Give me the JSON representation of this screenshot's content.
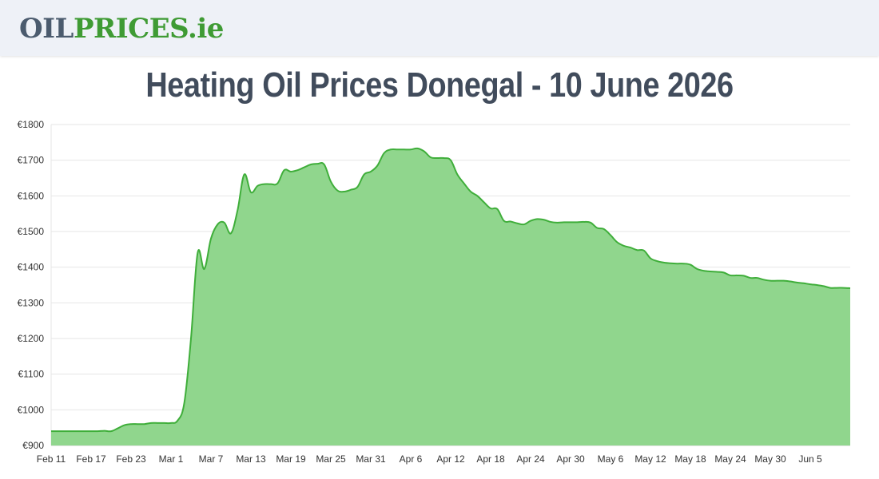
{
  "header": {
    "logo_part1": "OIL",
    "logo_part2": "PRICES",
    "logo_part3": ".ie",
    "logo_color_gray": "#4b5b6e",
    "logo_color_green": "#3f9b34"
  },
  "title": "Heating Oil Prices Donegal - 10 June 2026",
  "chart_data": {
    "type": "area",
    "title": "Heating Oil Prices Donegal - 10 June 2026",
    "xlabel": "",
    "ylabel": "",
    "ylim": [
      900,
      1800
    ],
    "yticks": [
      900,
      1000,
      1100,
      1200,
      1300,
      1400,
      1500,
      1600,
      1700,
      1800
    ],
    "ytick_labels": [
      "€900",
      "€1000",
      "€1100",
      "€1200",
      "€1300",
      "€1400",
      "€1500",
      "€1600",
      "€1700",
      "€1800"
    ],
    "xtick_labels": [
      "Feb 11",
      "Feb 17",
      "Feb 23",
      "Mar 1",
      "Mar 7",
      "Mar 13",
      "Mar 19",
      "Mar 25",
      "Mar 31",
      "Apr 6",
      "Apr 12",
      "Apr 18",
      "Apr 24",
      "Apr 30",
      "May 6",
      "May 12",
      "May 18",
      "May 24",
      "May 30",
      "Jun 5"
    ],
    "x_start": "Feb 11",
    "x_end": "Jun 10",
    "grid": true,
    "fill_color": "#90d68d",
    "line_color": "#3fae3a",
    "values": [
      940,
      940,
      940,
      940,
      940,
      940,
      940,
      940,
      941,
      940,
      948,
      957,
      960,
      960,
      960,
      963,
      963,
      963,
      963,
      970,
      1020,
      1200,
      1440,
      1395,
      1480,
      1520,
      1525,
      1495,
      1560,
      1660,
      1610,
      1628,
      1633,
      1633,
      1635,
      1672,
      1668,
      1672,
      1680,
      1688,
      1690,
      1688,
      1640,
      1615,
      1612,
      1617,
      1625,
      1660,
      1668,
      1685,
      1720,
      1730,
      1730,
      1730,
      1730,
      1733,
      1725,
      1708,
      1706,
      1706,
      1700,
      1660,
      1635,
      1612,
      1600,
      1582,
      1565,
      1563,
      1530,
      1528,
      1523,
      1520,
      1530,
      1535,
      1533,
      1527,
      1525,
      1526,
      1526,
      1526,
      1527,
      1525,
      1510,
      1507,
      1490,
      1470,
      1460,
      1455,
      1448,
      1447,
      1425,
      1417,
      1413,
      1411,
      1410,
      1410,
      1407,
      1395,
      1390,
      1388,
      1387,
      1385,
      1377,
      1377,
      1376,
      1370,
      1370,
      1365,
      1362,
      1362,
      1362,
      1360,
      1357,
      1355,
      1352,
      1350,
      1347,
      1342,
      1342,
      1342,
      1341
    ]
  }
}
